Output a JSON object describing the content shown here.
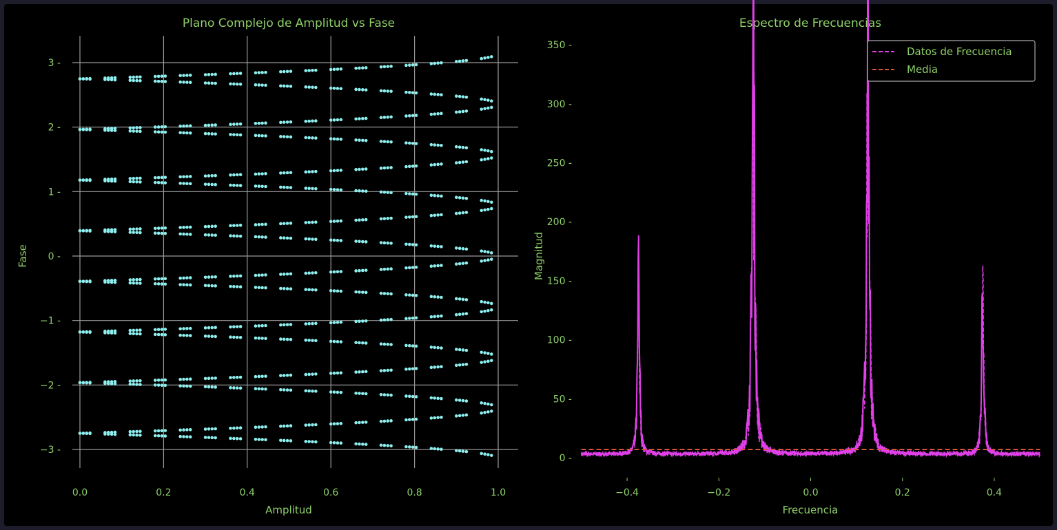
{
  "chart_data": [
    {
      "type": "scatter",
      "title": "Plano Complejo de Amplitud vs Fase",
      "xlabel": "Amplitud",
      "ylabel": "Fase",
      "xlim": [
        -0.03,
        1.05
      ],
      "ylim": [
        -3.4,
        3.4
      ],
      "xticks": [
        "0.0",
        "0.2",
        "0.4",
        "0.6",
        "0.8",
        "1.0"
      ],
      "xtick_values": [
        0,
        0.2,
        0.4,
        0.6,
        0.8,
        1.0
      ],
      "yticks": [
        "−3",
        "−2",
        "−1",
        "0",
        "1",
        "2",
        "3"
      ],
      "ytick_values": [
        -3,
        -2,
        -1,
        0,
        1,
        2,
        3
      ],
      "grid": true,
      "point_color": "#8ff0f0",
      "phase_centers": [
        -3.1416,
        -2.3562,
        -1.5708,
        -0.7854,
        0,
        0.7854,
        1.5708,
        2.3562,
        3.1416
      ],
      "phase_spread_at_zero": 0.3927,
      "amplitude_group_starts": [
        0,
        0.06,
        0.12,
        0.18,
        0.24,
        0.3,
        0.36,
        0.42,
        0.48,
        0.54,
        0.6,
        0.66,
        0.72,
        0.78,
        0.84,
        0.9,
        0.96
      ],
      "amplitude_group_offsets": [
        0,
        0.008,
        0.016,
        0.024
      ]
    },
    {
      "type": "line",
      "title": "Espectro de Frecuencias",
      "xlabel": "Frecuencia",
      "ylabel": "Magnitud",
      "xlim": [
        -0.5,
        0.5
      ],
      "ylim": [
        -7,
        355
      ],
      "xticks": [
        "−0.4",
        "−0.2",
        "0.0",
        "0.2",
        "0.4"
      ],
      "xtick_values": [
        -0.4,
        -0.2,
        0,
        0.2,
        0.4
      ],
      "yticks": [
        "0",
        "50",
        "100",
        "150",
        "200",
        "250",
        "300",
        "350"
      ],
      "ytick_values": [
        0,
        50,
        100,
        150,
        200,
        250,
        300,
        350
      ],
      "grid": false,
      "legend_position": "top-right",
      "series": [
        {
          "name": "Datos de Frecuencia",
          "color": "#e040e8",
          "style": "dashed",
          "peaks": [
            {
              "f": -0.375,
              "height": 142
            },
            {
              "f": -0.125,
              "height": 340
            },
            {
              "f": 0.125,
              "height": 338
            },
            {
              "f": 0.375,
              "height": 140
            }
          ],
          "baseline": 3
        },
        {
          "name": "Media",
          "color": "#d9523a",
          "style": "dashed",
          "value": 7
        }
      ]
    }
  ]
}
